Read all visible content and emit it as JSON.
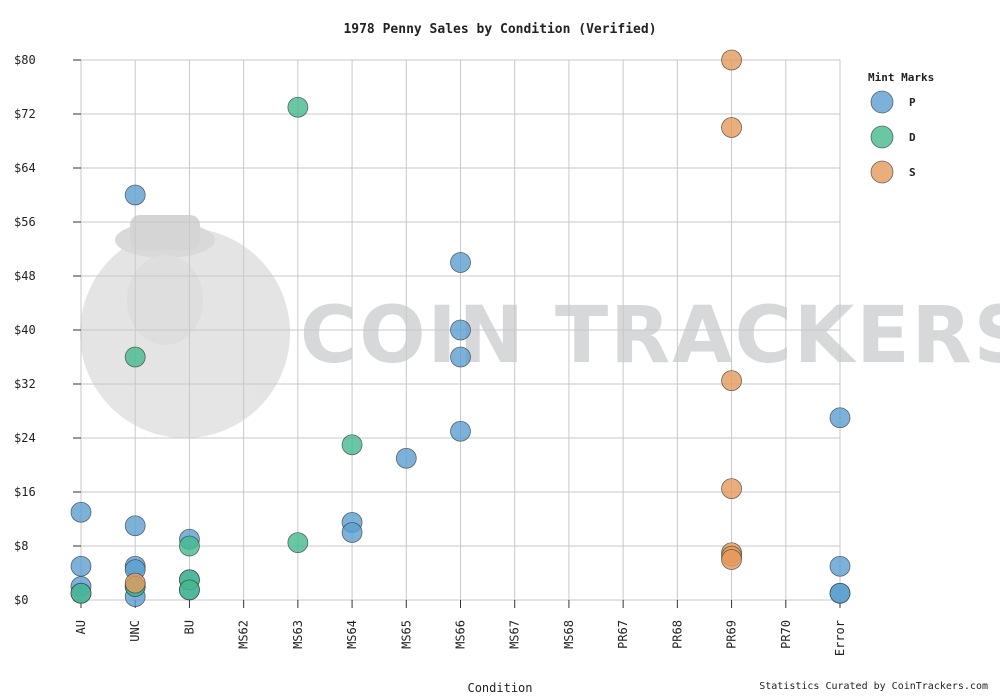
{
  "credit": "Statistics Curated by CoinTrackers.com",
  "watermark": {
    "text": "COIN TRACKERS"
  },
  "legend": {
    "title": "Mint Marks"
  },
  "colors": {
    "P": "#5b9fd0",
    "D": "#45b98c",
    "S": "#e59a5c",
    "grid": "#c8c8c8",
    "marker_edge": "#333333"
  },
  "chart_data": {
    "type": "scatter",
    "title": "1978 Penny Sales by Condition (Verified)",
    "xlabel": "Condition",
    "ylabel": "",
    "categories": [
      "AU",
      "UNC",
      "BU",
      "MS62",
      "MS63",
      "MS64",
      "MS65",
      "MS66",
      "MS67",
      "MS68",
      "PR67",
      "PR68",
      "PR69",
      "PR70",
      "Error"
    ],
    "y_ticks": [
      "$0",
      "$8",
      "$16",
      "$24",
      "$32",
      "$40",
      "$48",
      "$56",
      "$64",
      "$72",
      "$80"
    ],
    "ylim": [
      0,
      80
    ],
    "grid": true,
    "legend_position": "right",
    "series": [
      {
        "name": "P",
        "points": [
          {
            "x": "AU",
            "y": 13
          },
          {
            "x": "AU",
            "y": 5
          },
          {
            "x": "AU",
            "y": 2
          },
          {
            "x": "AU",
            "y": 1
          },
          {
            "x": "UNC",
            "y": 60
          },
          {
            "x": "UNC",
            "y": 11
          },
          {
            "x": "UNC",
            "y": 5
          },
          {
            "x": "UNC",
            "y": 4.5
          },
          {
            "x": "UNC",
            "y": 2
          },
          {
            "x": "UNC",
            "y": 0.5
          },
          {
            "x": "BU",
            "y": 9
          },
          {
            "x": "BU",
            "y": 3
          },
          {
            "x": "BU",
            "y": 1.5
          },
          {
            "x": "MS64",
            "y": 11.5
          },
          {
            "x": "MS64",
            "y": 10
          },
          {
            "x": "MS65",
            "y": 21
          },
          {
            "x": "MS66",
            "y": 50
          },
          {
            "x": "MS66",
            "y": 40
          },
          {
            "x": "MS66",
            "y": 36
          },
          {
            "x": "MS66",
            "y": 25
          },
          {
            "x": "Error",
            "y": 27
          },
          {
            "x": "Error",
            "y": 5
          },
          {
            "x": "Error",
            "y": 1
          },
          {
            "x": "Error",
            "y": 1
          }
        ]
      },
      {
        "name": "D",
        "points": [
          {
            "x": "AU",
            "y": 1
          },
          {
            "x": "UNC",
            "y": 36
          },
          {
            "x": "UNC",
            "y": 2
          },
          {
            "x": "BU",
            "y": 8
          },
          {
            "x": "BU",
            "y": 3
          },
          {
            "x": "BU",
            "y": 1.5
          },
          {
            "x": "MS63",
            "y": 73
          },
          {
            "x": "MS63",
            "y": 8.5
          },
          {
            "x": "MS64",
            "y": 23
          }
        ]
      },
      {
        "name": "S",
        "points": [
          {
            "x": "UNC",
            "y": 2.5
          },
          {
            "x": "PR69",
            "y": 80
          },
          {
            "x": "PR69",
            "y": 70
          },
          {
            "x": "PR69",
            "y": 32.5
          },
          {
            "x": "PR69",
            "y": 16.5
          },
          {
            "x": "PR69",
            "y": 7
          },
          {
            "x": "PR69",
            "y": 6.5
          },
          {
            "x": "PR69",
            "y": 6
          }
        ]
      }
    ]
  }
}
